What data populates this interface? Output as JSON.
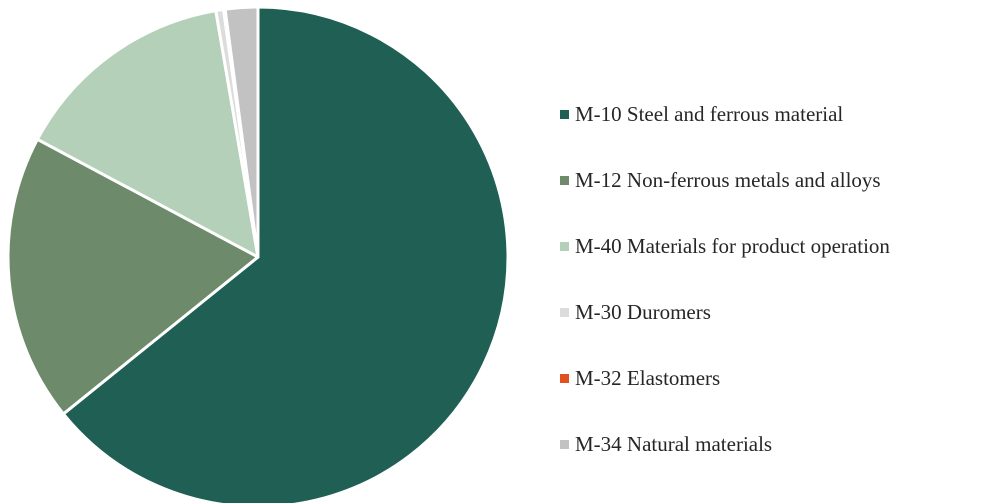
{
  "chart_data": {
    "type": "pie",
    "title": "",
    "slices": [
      {
        "label": "M-10 Steel and ferrous material",
        "value": 64.2,
        "color": "#1f5f54"
      },
      {
        "label": "M-12 Non-ferrous metals and alloys",
        "value": 18.6,
        "color": "#6d8a6a"
      },
      {
        "label": "M-40 Materials for product operation",
        "value": 14.5,
        "color": "#b4d0b8"
      },
      {
        "label": "M-30 Duromers",
        "value": 0.5,
        "color": "#dcdcdc"
      },
      {
        "label": "M-32 Elastomers",
        "value": 0.1,
        "color": "#e2501e"
      },
      {
        "label": "M-34 Natural materials",
        "value": 2.1,
        "color": "#c2c2c2"
      }
    ],
    "legend_position": "right"
  }
}
